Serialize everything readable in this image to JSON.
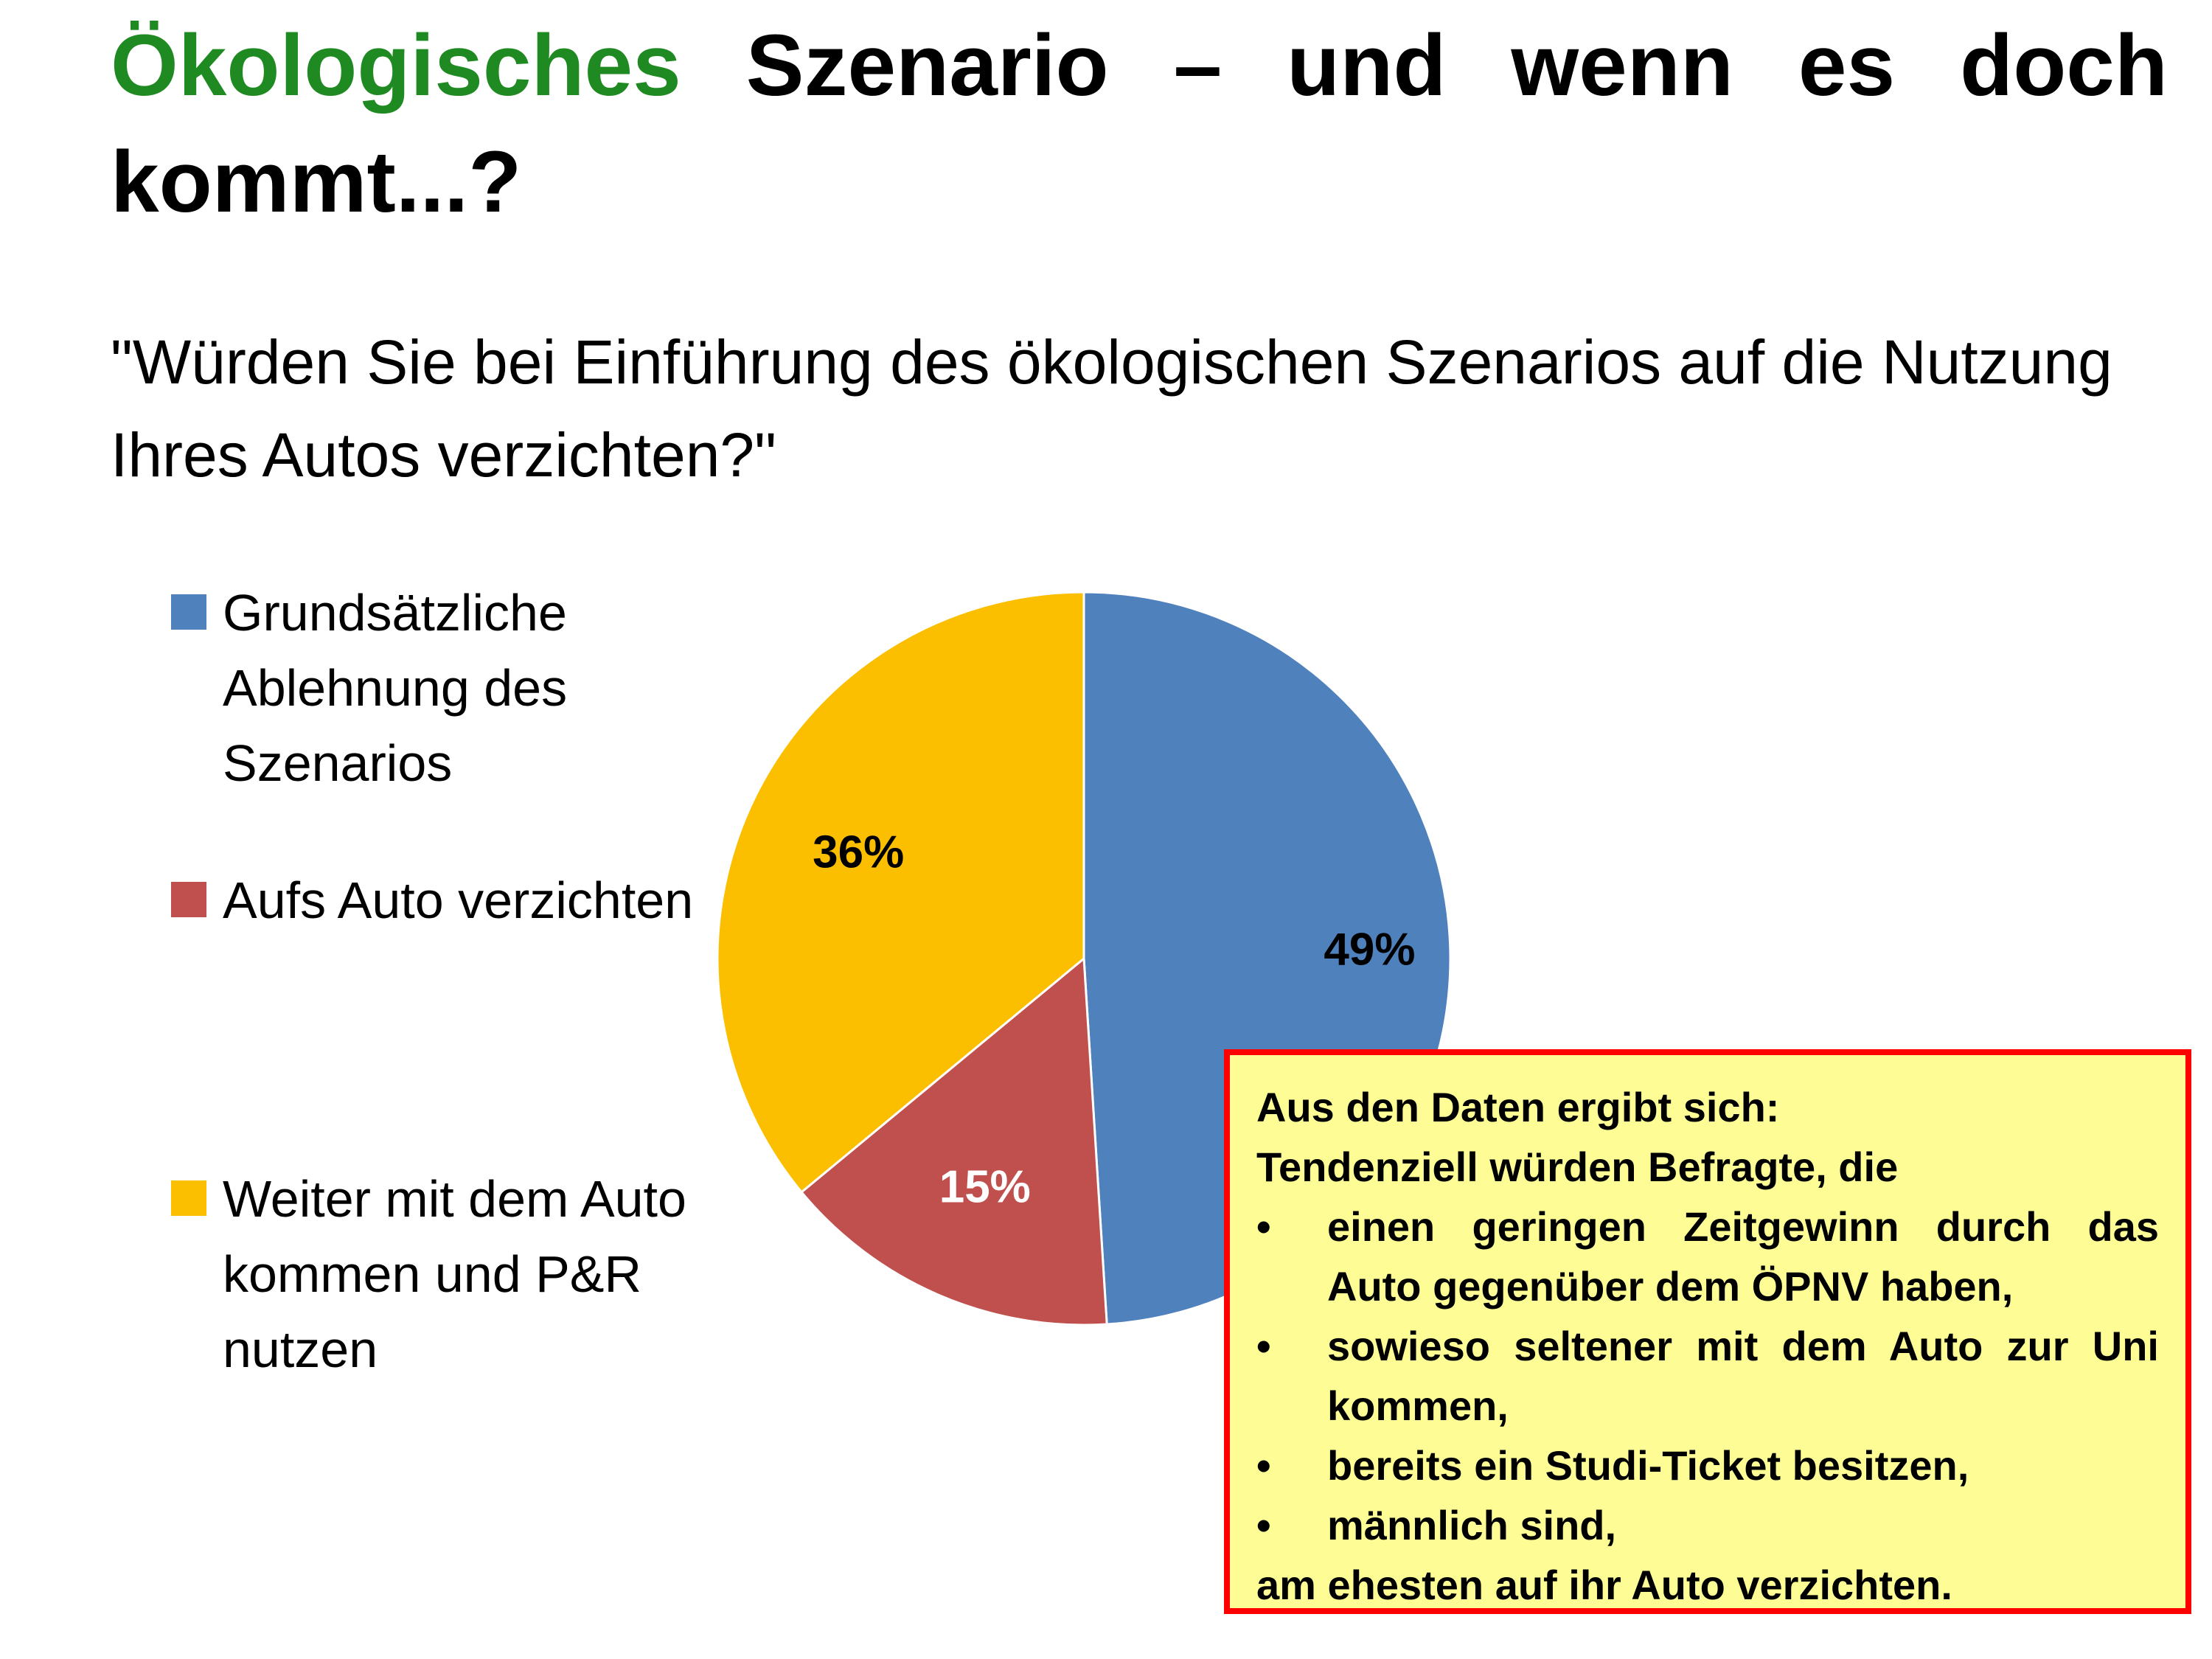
{
  "slide": {
    "title_green": "Ökologisches",
    "title_rest": "Szenario – und wenn es doch kommt...?",
    "question": "\"Würden Sie bei Einführung des ökologischen Szenarios auf die Nutzung Ihres Autos verzichten?\""
  },
  "chart_data": {
    "type": "pie",
    "title": "",
    "categories": [
      "Grundsätzliche Ablehnung des Szenarios",
      "Aufs Auto verzichten",
      "Weiter mit dem Auto kommen und P&R nutzen"
    ],
    "values": [
      49,
      15,
      36
    ],
    "data_labels": [
      "49%",
      "15%",
      "36%"
    ],
    "colors": [
      "#4f81bd",
      "#c0504d",
      "#fbbf00"
    ],
    "label_colors": [
      "#000000",
      "#ffffff",
      "#000000"
    ],
    "legend_position": "left",
    "start_angle": "12 o'clock",
    "direction": "clockwise"
  },
  "legend": {
    "items": [
      {
        "label": "Grundsätzliche Ablehnung des Szenarios"
      },
      {
        "label": "Aufs Auto verzichten"
      },
      {
        "label": "Weiter mit dem Auto kommen und P&R nutzen"
      }
    ]
  },
  "callout": {
    "intro_1": "Aus den Daten ergibt sich:",
    "intro_2": "Tendenziell würden Befragte, die",
    "bullet_char": "•",
    "bullets": [
      "einen geringen Zeitgewinn durch das Auto gegenüber dem ÖPNV haben,",
      "sowieso seltener mit dem Auto zur Uni kommen,",
      "bereits ein Studi-Ticket besitzen,",
      "männlich sind,"
    ],
    "outro": "am ehesten auf ihr Auto verzichten."
  }
}
